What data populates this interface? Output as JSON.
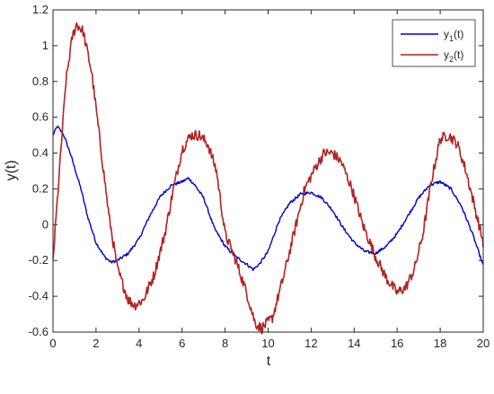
{
  "chart_data": {
    "type": "line",
    "title": "",
    "xlabel": "t",
    "ylabel": "y(t)",
    "xlim": [
      0,
      20
    ],
    "ylim": [
      -0.6,
      1.2
    ],
    "xticks": [
      0,
      2,
      4,
      6,
      8,
      10,
      12,
      14,
      16,
      18,
      20
    ],
    "yticks": [
      -0.6,
      -0.4,
      -0.2,
      0,
      0.2,
      0.4,
      0.6,
      0.8,
      1,
      1.2
    ],
    "grid": false,
    "legend_position": "top-right",
    "series": [
      {
        "name": "y1(t)",
        "legend_base": "y",
        "legend_sub": "1",
        "legend_suffix": "(t)",
        "color": "#0000cd",
        "noise": 0.008,
        "x": [
          0,
          0.2,
          0.5,
          0.8,
          1.0,
          1.3,
          1.6,
          2.0,
          2.4,
          2.7,
          3.0,
          3.5,
          4.0,
          4.5,
          5.0,
          5.5,
          6.0,
          6.3,
          6.6,
          7.0,
          7.5,
          8.0,
          8.5,
          9.0,
          9.3,
          9.6,
          10.0,
          10.5,
          11.0,
          11.5,
          12.0,
          12.5,
          13.0,
          13.5,
          14.0,
          14.5,
          15.0,
          15.5,
          16.0,
          16.5,
          17.0,
          17.5,
          18.0,
          18.5,
          19.0,
          19.5,
          20.0
        ],
        "y": [
          0.5,
          0.55,
          0.5,
          0.4,
          0.32,
          0.2,
          0.05,
          -0.1,
          -0.18,
          -0.21,
          -0.2,
          -0.16,
          -0.08,
          0.05,
          0.16,
          0.22,
          0.24,
          0.26,
          0.22,
          0.15,
          -0.02,
          -0.12,
          -0.18,
          -0.22,
          -0.25,
          -0.22,
          -0.15,
          0.02,
          0.12,
          0.17,
          0.18,
          0.15,
          0.08,
          -0.02,
          -0.1,
          -0.15,
          -0.16,
          -0.12,
          -0.05,
          0.05,
          0.15,
          0.22,
          0.24,
          0.2,
          0.1,
          -0.05,
          -0.23
        ]
      },
      {
        "name": "y2(t)",
        "legend_base": "y",
        "legend_sub": "2",
        "legend_suffix": "(t)",
        "color": "#b22222",
        "noise": 0.03,
        "x": [
          0,
          0.3,
          0.6,
          0.9,
          1.1,
          1.4,
          1.8,
          2.2,
          2.6,
          3.0,
          3.5,
          3.8,
          4.2,
          4.7,
          5.2,
          5.6,
          6.0,
          6.4,
          6.8,
          7.2,
          7.6,
          8.0,
          8.5,
          9.0,
          9.4,
          9.7,
          10.2,
          10.7,
          11.2,
          11.7,
          12.2,
          12.6,
          13.0,
          13.4,
          13.9,
          14.4,
          15.0,
          15.5,
          16.0,
          16.4,
          16.8,
          17.2,
          17.6,
          18.0,
          18.4,
          18.8,
          19.2,
          19.6,
          20.0
        ],
        "y": [
          -0.2,
          0.3,
          0.8,
          1.05,
          1.12,
          1.08,
          0.85,
          0.45,
          0.05,
          -0.25,
          -0.42,
          -0.45,
          -0.42,
          -0.28,
          -0.05,
          0.2,
          0.42,
          0.5,
          0.5,
          0.45,
          0.3,
          -0.05,
          -0.2,
          -0.38,
          -0.55,
          -0.58,
          -0.52,
          -0.3,
          -0.05,
          0.2,
          0.32,
          0.4,
          0.4,
          0.35,
          0.2,
          0.0,
          -0.18,
          -0.3,
          -0.38,
          -0.35,
          -0.25,
          -0.05,
          0.25,
          0.48,
          0.5,
          0.45,
          0.3,
          0.1,
          -0.1
        ]
      }
    ]
  }
}
